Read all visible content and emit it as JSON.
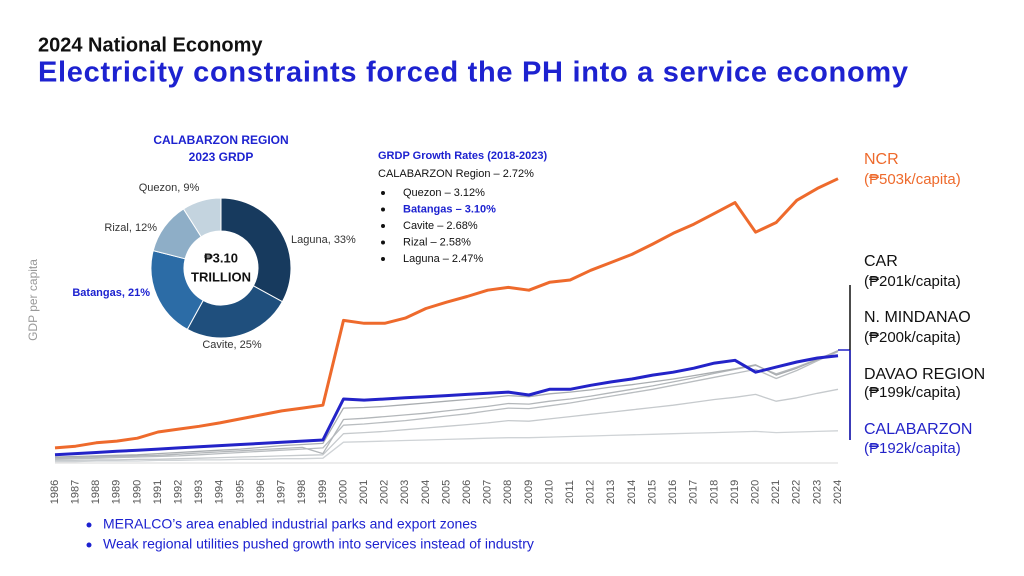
{
  "header": {
    "kicker": "2024 National Economy",
    "title": "Electricity constraints forced the PH into a service economy"
  },
  "chart_data": [
    {
      "type": "pie",
      "title": "CALABARZON REGION",
      "subtitle": "2023 GRDP",
      "center_label": [
        "₱3.10",
        "TRILLION"
      ],
      "values": [
        33,
        25,
        21,
        12,
        9
      ],
      "value_labels": [
        "Laguna, 33%",
        "Cavite, 25%",
        "Batangas, 21%",
        "Rizal, 12%",
        "Quezon, 9%"
      ],
      "colors": [
        "#173a5e",
        "#1f4f7d",
        "#2c6ca6",
        "#8eaec7",
        "#c4d4df"
      ],
      "highlight": 2
    },
    {
      "type": "line",
      "ylabel": "GDP per capita",
      "x": [
        1986,
        1987,
        1988,
        1989,
        1990,
        1991,
        1992,
        1993,
        1994,
        1995,
        1996,
        1997,
        1998,
        1999,
        2000,
        2001,
        2002,
        2003,
        2004,
        2005,
        2006,
        2007,
        2008,
        2009,
        2010,
        2011,
        2012,
        2013,
        2014,
        2015,
        2016,
        2017,
        2018,
        2019,
        2020,
        2021,
        2022,
        2023,
        2024
      ],
      "xticks": [
        1986,
        1987,
        1988,
        1989,
        1990,
        1991,
        1992,
        1993,
        1994,
        1995,
        1996,
        1997,
        1998,
        1999,
        2000,
        2001,
        2002,
        2003,
        2004,
        2005,
        2006,
        2007,
        2008,
        2009,
        2010,
        2011,
        2012,
        2013,
        2014,
        2015,
        2016,
        2017,
        2018,
        2019,
        2020,
        2021,
        2022,
        2023,
        2024
      ],
      "xlim": [
        1986,
        2024
      ],
      "ylim": [
        0,
        520
      ],
      "series": [
        {
          "color": "#cfd3d6",
          "values": [
            6,
            6,
            7,
            7,
            7,
            8,
            8,
            9,
            9,
            10,
            10,
            11,
            11,
            12,
            40,
            41,
            42,
            43,
            44,
            45,
            46,
            47,
            48,
            48,
            49,
            50,
            51,
            52,
            53,
            54,
            55,
            56,
            57,
            58,
            59,
            57,
            58,
            59,
            60
          ]
        },
        {
          "color": "#c6cacd",
          "values": [
            8,
            8,
            9,
            9,
            10,
            10,
            11,
            12,
            13,
            14,
            15,
            16,
            17,
            18,
            55,
            57,
            59,
            62,
            65,
            68,
            71,
            74,
            78,
            77,
            81,
            85,
            89,
            93,
            97,
            101,
            105,
            110,
            115,
            119,
            124,
            112,
            118,
            126,
            133
          ]
        },
        {
          "name": "DAVAO REGION",
          "label": "(₱199k/capita)",
          "color": "#b9bdc0",
          "values": [
            10,
            11,
            12,
            13,
            14,
            15,
            16,
            18,
            20,
            22,
            24,
            26,
            28,
            30,
            70,
            72,
            75,
            78,
            82,
            86,
            90,
            95,
            100,
            99,
            104,
            109,
            115,
            121,
            127,
            133,
            140,
            147,
            154,
            161,
            168,
            152,
            166,
            183,
            199
          ]
        },
        {
          "name": "N. MINDANAO",
          "label": "(₱200k/capita)",
          "color": "#b3b7ba",
          "values": [
            12,
            13,
            14,
            15,
            16,
            17,
            19,
            21,
            23,
            25,
            27,
            29,
            31,
            20,
            80,
            82,
            85,
            88,
            91,
            95,
            99,
            103,
            108,
            107,
            112,
            116,
            121,
            127,
            133,
            139,
            146,
            153,
            161,
            168,
            175,
            160,
            172,
            186,
            200
          ]
        },
        {
          "name": "CAR",
          "label": "(₱201k/capita)",
          "color": "#a9adb0",
          "values": [
            14,
            15,
            16,
            17,
            18,
            20,
            22,
            24,
            26,
            28,
            31,
            34,
            36,
            38,
            100,
            101,
            103,
            106,
            109,
            112,
            115,
            118,
            122,
            120,
            125,
            128,
            132,
            137,
            141,
            146,
            151,
            157,
            163,
            169,
            176,
            158,
            170,
            185,
            201
          ]
        },
        {
          "name": "CALABARZON",
          "label": "(₱192k/capita)",
          "color": "#2323c8",
          "values": [
            18,
            20,
            22,
            24,
            26,
            28,
            30,
            32,
            34,
            36,
            38,
            40,
            42,
            44,
            116,
            114,
            116,
            118,
            120,
            122,
            124,
            126,
            128,
            123,
            133,
            133,
            140,
            146,
            151,
            158,
            163,
            170,
            179,
            184,
            163,
            172,
            181,
            188,
            192
          ]
        },
        {
          "name": "NCR",
          "label": "(₱503k/capita)",
          "color": "#ee6a2c",
          "values": [
            30,
            33,
            39,
            42,
            47,
            58,
            63,
            68,
            74,
            81,
            88,
            95,
            100,
            105,
            254,
            249,
            249,
            258,
            275,
            286,
            296,
            307,
            312,
            307,
            321,
            325,
            342,
            356,
            370,
            388,
            407,
            423,
            442,
            461,
            409,
            426,
            465,
            486,
            503
          ]
        }
      ]
    }
  ],
  "growth": {
    "title": "GRDP Growth Rates (2018-2023)",
    "total": "CALABARZON Region – 2.72%",
    "items": [
      "Quezon – 3.12%",
      "Batangas – 3.10%",
      "Cavite – 2.68%",
      "Rizal – 2.58%",
      "Laguna – 2.47%"
    ],
    "highlight": 1
  },
  "notes": [
    "MERALCO’s area enabled industrial parks and export zones",
    "Weak regional utilities pushed growth into services instead of industry"
  ]
}
